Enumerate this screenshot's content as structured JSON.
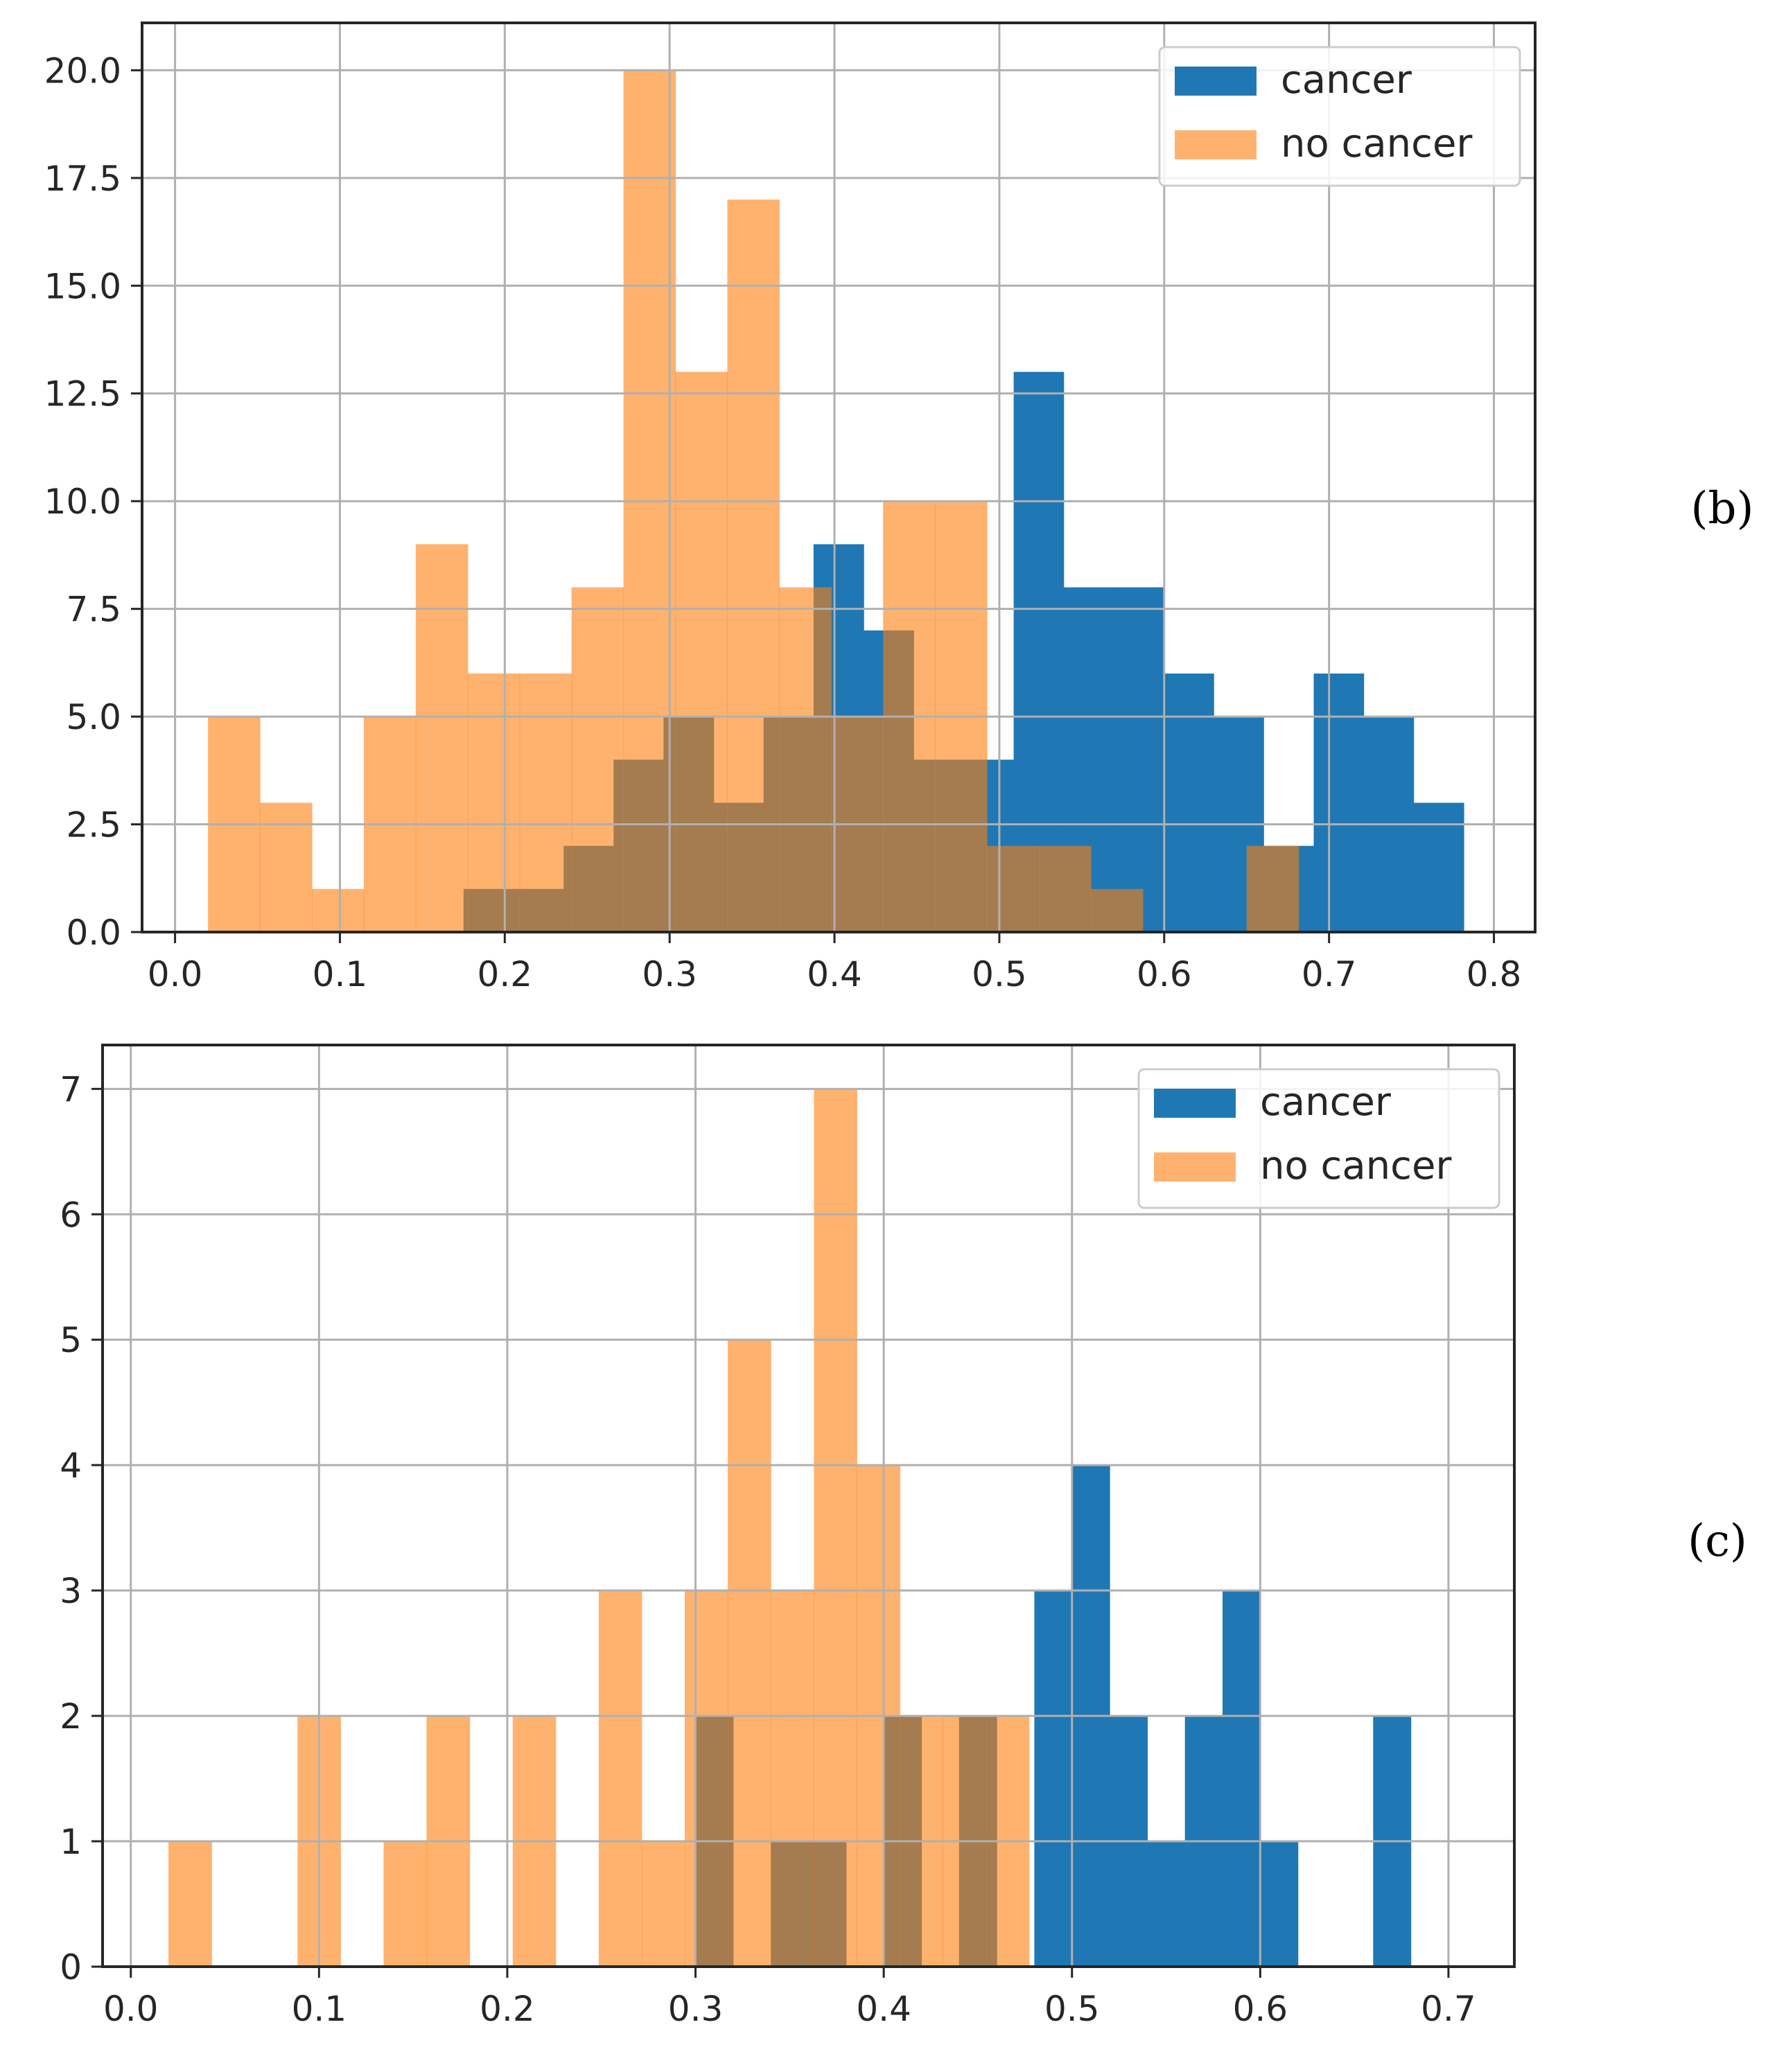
{
  "chart_data": [
    {
      "type": "histogram",
      "panel_label": "(b)",
      "xlim": [
        -0.02,
        0.825
      ],
      "ylim": [
        0,
        21.1
      ],
      "x_ticks": [
        0.0,
        0.1,
        0.2,
        0.3,
        0.4,
        0.5,
        0.6,
        0.7,
        0.8
      ],
      "x_tick_labels": [
        "0.0",
        "0.1",
        "0.2",
        "0.3",
        "0.4",
        "0.5",
        "0.6",
        "0.7",
        "0.8"
      ],
      "y_ticks": [
        0,
        2.5,
        5,
        7.5,
        10,
        12.5,
        15,
        17.5,
        20
      ],
      "y_tick_labels": [
        "0.0",
        "2.5",
        "5.0",
        "7.5",
        "10.0",
        "12.5",
        "15.0",
        "17.5",
        "20.0"
      ],
      "grid": true,
      "legend_position": "top-right",
      "series": [
        {
          "name": "cancer",
          "legend_label": "cancer",
          "color": "#1f77b4",
          "alpha": 1.0,
          "bin_edges": [
            0.175,
            0.2053,
            0.2357,
            0.266,
            0.2963,
            0.3267,
            0.357,
            0.3873,
            0.4177,
            0.448,
            0.4783,
            0.5087,
            0.539,
            0.5693,
            0.5997,
            0.63,
            0.6603,
            0.6907,
            0.721,
            0.7513,
            0.7817
          ],
          "counts": [
            1,
            1,
            2,
            4,
            5,
            3,
            5,
            9,
            7,
            4,
            4,
            13,
            8,
            8,
            6,
            5,
            2,
            6,
            5,
            3
          ]
        },
        {
          "name": "no cancer",
          "legend_label": "no cancer",
          "color": "#ff7f0e",
          "alpha": 0.6,
          "bin_edges": [
            0.02,
            0.0515,
            0.083,
            0.1145,
            0.146,
            0.1775,
            0.209,
            0.2405,
            0.272,
            0.3035,
            0.335,
            0.3665,
            0.398,
            0.4295,
            0.461,
            0.4925,
            0.524,
            0.5555,
            0.587,
            0.6185,
            0.65,
            0.6815
          ],
          "counts": [
            5,
            3,
            1,
            5,
            9,
            6,
            6,
            8,
            20,
            13,
            17,
            8,
            5,
            10,
            10,
            2,
            2,
            1,
            0,
            0,
            2
          ]
        }
      ]
    },
    {
      "type": "histogram",
      "panel_label": "(c)",
      "xlim": [
        -0.015,
        0.735
      ],
      "ylim": [
        0,
        7.35
      ],
      "x_ticks": [
        0.0,
        0.1,
        0.2,
        0.3,
        0.4,
        0.5,
        0.6,
        0.7
      ],
      "x_tick_labels": [
        "0.0",
        "0.1",
        "0.2",
        "0.3",
        "0.4",
        "0.5",
        "0.6",
        "0.7"
      ],
      "y_ticks": [
        0,
        1,
        2,
        3,
        4,
        5,
        6,
        7
      ],
      "y_tick_labels": [
        "0",
        "1",
        "2",
        "3",
        "4",
        "5",
        "6",
        "7"
      ],
      "grid": true,
      "legend_position": "top-right",
      "series": [
        {
          "name": "cancer",
          "legend_label": "cancer",
          "color": "#1f77b4",
          "alpha": 1.0,
          "bin_edges": [
            0.3,
            0.32,
            0.34,
            0.36,
            0.38,
            0.4,
            0.42,
            0.44,
            0.46,
            0.48,
            0.5,
            0.52,
            0.54,
            0.56,
            0.58,
            0.6,
            0.62,
            0.64,
            0.66,
            0.68,
            0.7
          ],
          "counts": [
            2,
            0,
            1,
            1,
            0,
            2,
            0,
            2,
            0,
            3,
            4,
            2,
            1,
            2,
            3,
            1,
            0,
            0,
            2,
            0
          ]
        },
        {
          "name": "no cancer",
          "legend_label": "no cancer",
          "color": "#ff7f0e",
          "alpha": 0.6,
          "bin_edges": [
            0.02,
            0.0429,
            0.0657,
            0.0886,
            0.1114,
            0.1343,
            0.1571,
            0.18,
            0.2029,
            0.2257,
            0.2486,
            0.2714,
            0.2943,
            0.3171,
            0.34,
            0.3629,
            0.3857,
            0.4086,
            0.4314,
            0.4543,
            0.4771
          ],
          "counts": [
            1,
            0,
            0,
            2,
            0,
            1,
            2,
            0,
            2,
            0,
            3,
            1,
            3,
            5,
            3,
            7,
            4,
            2,
            2,
            2
          ]
        }
      ]
    }
  ]
}
